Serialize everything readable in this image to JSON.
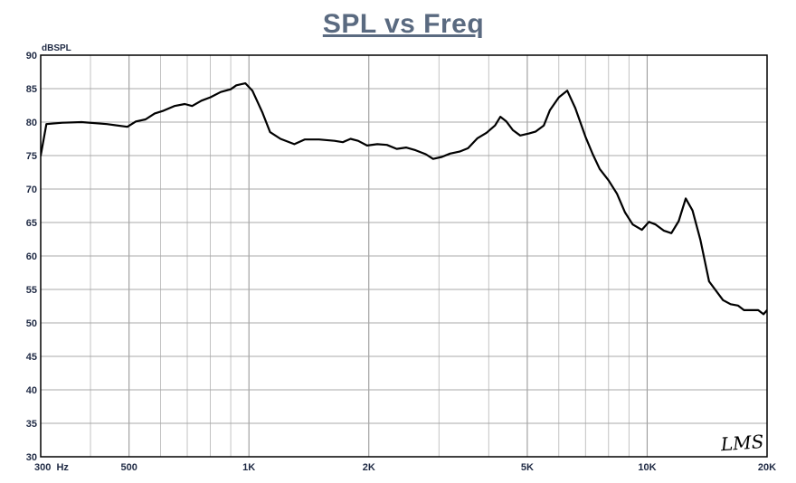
{
  "chart_data": {
    "type": "line",
    "title": "SPL vs Freq",
    "ylabel": "dBSPL",
    "xlabel": "",
    "x_scale": "log",
    "xlim": [
      300,
      20000
    ],
    "ylim": [
      30,
      90
    ],
    "grid": true,
    "y_ticks": [
      30,
      35,
      40,
      45,
      50,
      55,
      60,
      65,
      70,
      75,
      80,
      85,
      90
    ],
    "x_tick_labels": [
      {
        "value": 300,
        "label": "300  Hz"
      },
      {
        "value": 500,
        "label": "500"
      },
      {
        "value": 1000,
        "label": "1K"
      },
      {
        "value": 2000,
        "label": "2K"
      },
      {
        "value": 5000,
        "label": "5K"
      },
      {
        "value": 10000,
        "label": "10K"
      },
      {
        "value": 20000,
        "label": "20K"
      }
    ],
    "series": [
      {
        "color": "#000000",
        "points": [
          [
            300,
            75
          ],
          [
            310,
            79.7
          ],
          [
            340,
            79.9
          ],
          [
            380,
            80
          ],
          [
            440,
            79.7
          ],
          [
            495,
            79.3
          ],
          [
            520,
            80.1
          ],
          [
            550,
            80.4
          ],
          [
            580,
            81.3
          ],
          [
            610,
            81.7
          ],
          [
            650,
            82.4
          ],
          [
            690,
            82.7
          ],
          [
            720,
            82.4
          ],
          [
            760,
            83.2
          ],
          [
            800,
            83.7
          ],
          [
            850,
            84.5
          ],
          [
            900,
            84.9
          ],
          [
            930,
            85.5
          ],
          [
            980,
            85.8
          ],
          [
            1020,
            84.7
          ],
          [
            1080,
            81.5
          ],
          [
            1130,
            78.5
          ],
          [
            1200,
            77.5
          ],
          [
            1300,
            76.7
          ],
          [
            1380,
            77.4
          ],
          [
            1500,
            77.4
          ],
          [
            1640,
            77.2
          ],
          [
            1720,
            77
          ],
          [
            1800,
            77.5
          ],
          [
            1880,
            77.2
          ],
          [
            1980,
            76.5
          ],
          [
            2100,
            76.7
          ],
          [
            2220,
            76.6
          ],
          [
            2350,
            76
          ],
          [
            2480,
            76.2
          ],
          [
            2620,
            75.8
          ],
          [
            2780,
            75.2
          ],
          [
            2900,
            74.5
          ],
          [
            3050,
            74.8
          ],
          [
            3200,
            75.3
          ],
          [
            3380,
            75.6
          ],
          [
            3550,
            76.1
          ],
          [
            3750,
            77.6
          ],
          [
            3950,
            78.4
          ],
          [
            4150,
            79.5
          ],
          [
            4280,
            80.8
          ],
          [
            4430,
            80.1
          ],
          [
            4600,
            78.8
          ],
          [
            4800,
            78
          ],
          [
            5050,
            78.3
          ],
          [
            5250,
            78.6
          ],
          [
            5500,
            79.5
          ],
          [
            5700,
            81.8
          ],
          [
            6000,
            83.7
          ],
          [
            6300,
            84.7
          ],
          [
            6600,
            82.1
          ],
          [
            7000,
            77.8
          ],
          [
            7300,
            75.2
          ],
          [
            7600,
            73
          ],
          [
            8000,
            71.3
          ],
          [
            8400,
            69.3
          ],
          [
            8800,
            66.5
          ],
          [
            9200,
            64.7
          ],
          [
            9700,
            63.9
          ],
          [
            10100,
            65.1
          ],
          [
            10500,
            64.7
          ],
          [
            11000,
            63.8
          ],
          [
            11500,
            63.4
          ],
          [
            12000,
            65.2
          ],
          [
            12500,
            68.6
          ],
          [
            13000,
            66.8
          ],
          [
            13600,
            62.4
          ],
          [
            14300,
            56.2
          ],
          [
            15500,
            53.4
          ],
          [
            16200,
            52.8
          ],
          [
            16900,
            52.6
          ],
          [
            17500,
            51.9
          ],
          [
            18400,
            51.9
          ],
          [
            19000,
            51.9
          ],
          [
            19600,
            51.3
          ],
          [
            20200,
            52.2
          ],
          [
            20800,
            52.7
          ],
          [
            21700,
            53.4
          ],
          [
            22500,
            52.5
          ],
          [
            23200,
            52.4
          ]
        ]
      }
    ]
  },
  "logo": "LMS"
}
